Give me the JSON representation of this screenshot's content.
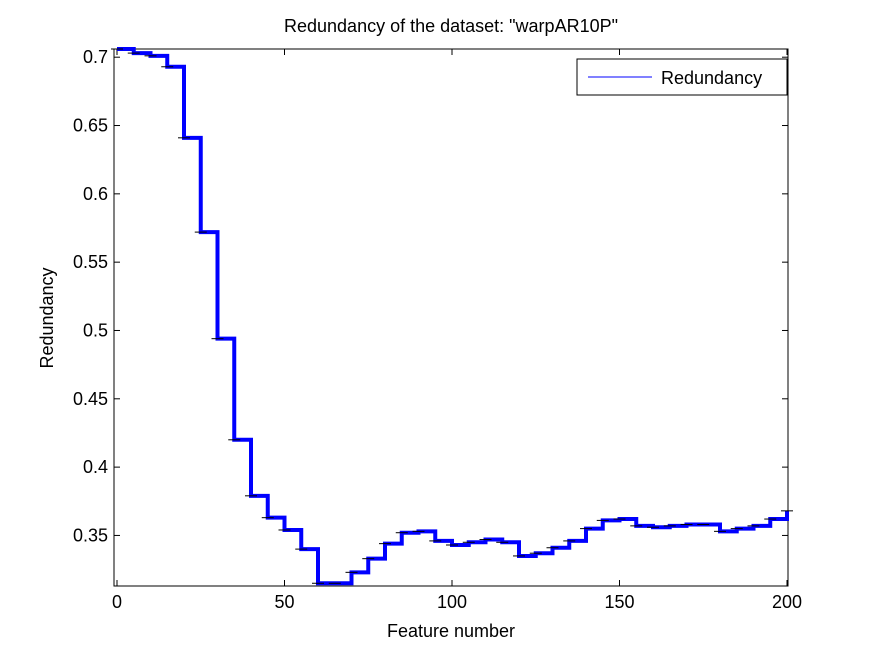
{
  "chart_data": {
    "type": "line",
    "title": "Redundancy of the dataset: \"warpAR10P\"",
    "xlabel": "Feature number",
    "ylabel": "Redundancy",
    "xlim": [
      0,
      200
    ],
    "ylim": [
      0.313,
      0.706
    ],
    "xticks": [
      0,
      50,
      100,
      150,
      200
    ],
    "yticks": [
      0.35,
      0.4,
      0.45,
      0.5,
      0.55,
      0.6,
      0.65,
      0.7
    ],
    "grid": false,
    "legend_position": "top-right",
    "series": [
      {
        "name": "Redundancy",
        "color": "#0000ff",
        "style": "step",
        "x": [
          0,
          5,
          10,
          15,
          20,
          25,
          30,
          35,
          40,
          45,
          50,
          55,
          60,
          65,
          70,
          75,
          80,
          85,
          90,
          95,
          100,
          105,
          110,
          115,
          120,
          125,
          130,
          135,
          140,
          145,
          150,
          155,
          160,
          165,
          170,
          175,
          180,
          185,
          190,
          195,
          200
        ],
        "values": [
          0.706,
          0.703,
          0.701,
          0.693,
          0.641,
          0.572,
          0.494,
          0.42,
          0.379,
          0.363,
          0.354,
          0.34,
          0.315,
          0.315,
          0.323,
          0.333,
          0.344,
          0.352,
          0.353,
          0.346,
          0.343,
          0.345,
          0.347,
          0.345,
          0.335,
          0.337,
          0.341,
          0.346,
          0.355,
          0.361,
          0.362,
          0.357,
          0.356,
          0.357,
          0.358,
          0.358,
          0.353,
          0.355,
          0.357,
          0.362,
          0.368
        ]
      }
    ]
  }
}
